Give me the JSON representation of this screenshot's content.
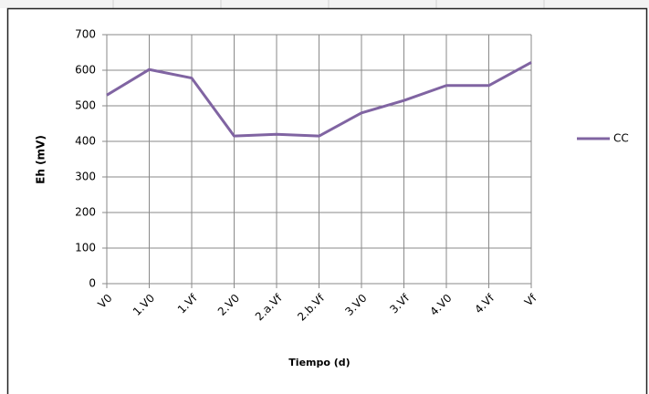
{
  "chart_data": {
    "type": "line",
    "x_label": "Tiempo (d)",
    "y_label": "Eh (mV)",
    "categories": [
      "V0",
      "1.V0",
      "1.Vf",
      "2.V0",
      "2.a.Vf",
      "2.b.Vf",
      "3.V0",
      "3.Vf",
      "4.V0",
      "4.Vf",
      "Vf"
    ],
    "series": [
      {
        "name": "CC",
        "color": "#8064a2",
        "values": [
          530,
          602,
          578,
          415,
          420,
          415,
          480,
          515,
          557,
          557,
          622
        ]
      }
    ],
    "ylim": [
      0,
      700
    ],
    "yticks": [
      0,
      100,
      200,
      300,
      400,
      500,
      600,
      700
    ],
    "grid": true,
    "legend": "right"
  }
}
